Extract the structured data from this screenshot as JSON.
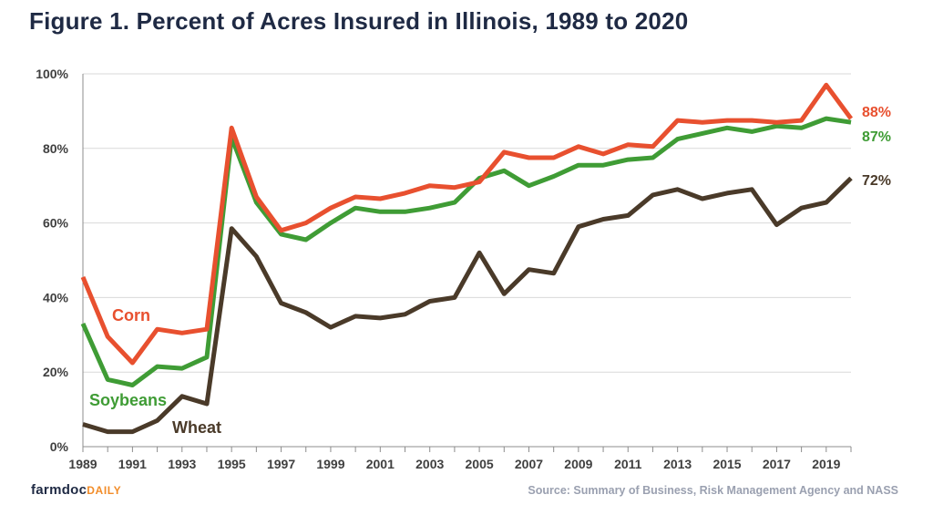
{
  "title": "Figure 1.  Percent of Acres Insured in Illinois, 1989 to 2020",
  "brand": {
    "main": "farmdoc",
    "suffix": "DAILY"
  },
  "source": "Source: Summary of Business, Risk Management Agency and NASS",
  "chart_data": {
    "type": "line",
    "title": "Figure 1.  Percent of Acres Insured in Illinois, 1989 to 2020",
    "xlabel": "",
    "ylabel": "",
    "x": [
      1989,
      1990,
      1991,
      1992,
      1993,
      1994,
      1995,
      1996,
      1997,
      1998,
      1999,
      2000,
      2001,
      2002,
      2003,
      2004,
      2005,
      2006,
      2007,
      2008,
      2009,
      2010,
      2011,
      2012,
      2013,
      2014,
      2015,
      2016,
      2017,
      2018,
      2019,
      2020
    ],
    "xlim": [
      1989,
      2020
    ],
    "x_ticks": [
      1989,
      1991,
      1993,
      1995,
      1997,
      1999,
      2001,
      2003,
      2005,
      2007,
      2009,
      2011,
      2013,
      2015,
      2017,
      2019
    ],
    "x_tick_labels": [
      "1989",
      "1991",
      "1993",
      "1995",
      "1997",
      "1999",
      "2001",
      "2003",
      "2005",
      "2007",
      "2009",
      "2011",
      "2013",
      "2015",
      "2017",
      "2019"
    ],
    "ylim": [
      0,
      100
    ],
    "y_ticks": [
      0,
      20,
      40,
      60,
      80,
      100
    ],
    "y_tick_labels": [
      "0%",
      "20%",
      "40%",
      "60%",
      "80%",
      "100%"
    ],
    "grid": true,
    "legend": "inline labels",
    "series": [
      {
        "name": "Corn",
        "color": "#e8502f",
        "end_label": "88%",
        "values": [
          45.5,
          29.5,
          22.5,
          31.5,
          30.5,
          31.5,
          85.5,
          67,
          58,
          60,
          64,
          67,
          66.5,
          68,
          70,
          69.5,
          71,
          79,
          77.5,
          77.5,
          80.5,
          78.5,
          81,
          80.5,
          87.5,
          87,
          87.5,
          87.5,
          87,
          87.5,
          97,
          88
        ]
      },
      {
        "name": "Soybeans",
        "color": "#3f9c35",
        "end_label": "87%",
        "values": [
          33,
          18,
          16.5,
          21.5,
          21,
          24,
          83,
          65.5,
          57,
          55.5,
          60,
          64,
          63,
          63,
          64,
          65.5,
          72,
          74,
          70,
          72.5,
          75.5,
          75.5,
          77,
          77.5,
          82.5,
          84,
          85.5,
          84.5,
          86,
          85.5,
          88,
          87
        ]
      },
      {
        "name": "Wheat",
        "color": "#4a3a29",
        "end_label": "72%",
        "values": [
          6,
          4,
          4,
          7,
          13.5,
          11.5,
          58.5,
          51,
          38.5,
          36,
          32,
          35,
          34.5,
          35.5,
          39,
          40,
          52,
          41,
          47.5,
          46.5,
          59,
          61,
          62,
          67.5,
          69,
          66.5,
          68,
          69,
          59.5,
          64,
          65.5,
          72
        ]
      }
    ]
  }
}
